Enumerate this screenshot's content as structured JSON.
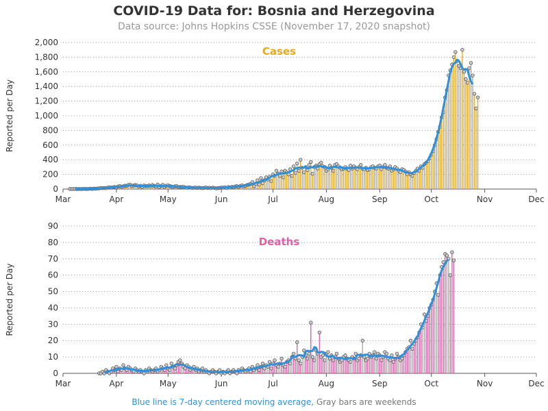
{
  "title": "COVID-19 Data for: Bosnia and Herzegovina",
  "subtitle": "Data source: Johns Hopkins CSSE (November 17, 2020 snapshot)",
  "footnote": {
    "blue_part": "Blue line is 7-day centered moving average,",
    "gray_part": "Gray bars are weekends"
  },
  "colors": {
    "cases": "#e8a820",
    "deaths": "#e060a8",
    "average": "#2e8fdb",
    "marker_fill": "#cccccc",
    "marker_stroke": "#555555"
  },
  "chart_data": [
    {
      "type": "bar",
      "panel_label": "Cases",
      "ylabel": "Reported per Day",
      "ylim": [
        0,
        2000
      ],
      "yticks": [
        0,
        200,
        400,
        600,
        800,
        1000,
        1200,
        1400,
        1600,
        1800,
        2000
      ],
      "ytick_labels": [
        "0",
        "200",
        "400",
        "600",
        "800",
        "1,000",
        "1,200",
        "1,400",
        "1,600",
        "1,800",
        "2,000"
      ],
      "x_start": "2020-03-01",
      "x_end": "2020-12-01",
      "xtick_labels": [
        "Mar",
        "Apr",
        "May",
        "Jun",
        "Jul",
        "Aug",
        "Sep",
        "Oct",
        "Nov",
        "Dec"
      ],
      "grid": "horizontal dotted",
      "dates_from": "2020-03-05",
      "values": [
        2,
        0,
        1,
        3,
        0,
        2,
        1,
        0,
        4,
        2,
        2,
        3,
        5,
        2,
        6,
        5,
        9,
        10,
        14,
        12,
        13,
        12,
        20,
        25,
        19,
        24,
        28,
        22,
        35,
        41,
        32,
        38,
        46,
        44,
        56,
        61,
        42,
        48,
        55,
        50,
        36,
        45,
        30,
        48,
        44,
        39,
        50,
        40,
        55,
        42,
        37,
        62,
        28,
        43,
        58,
        30,
        46,
        52,
        40,
        35,
        30,
        38,
        40,
        25,
        30,
        28,
        32,
        22,
        18,
        25,
        20,
        15,
        18,
        22,
        14,
        20,
        16,
        12,
        17,
        22,
        14,
        18,
        12,
        20,
        15,
        10,
        13,
        16,
        22,
        18,
        25,
        15,
        28,
        20,
        30,
        26,
        35,
        40,
        30,
        42,
        50,
        38,
        45,
        55,
        62,
        70,
        95,
        40,
        70,
        120,
        60,
        150,
        80,
        120,
        160,
        130,
        170,
        110,
        200,
        180,
        250,
        210,
        180,
        240,
        160,
        250,
        230,
        200,
        270,
        180,
        310,
        220,
        350,
        250,
        400,
        290,
        230,
        300,
        260,
        330,
        370,
        210,
        300,
        320,
        280,
        340,
        360,
        310,
        300,
        250,
        270,
        320,
        290,
        250,
        330,
        340,
        310,
        290,
        270,
        280,
        300,
        280,
        260,
        320,
        280,
        310,
        290,
        270,
        300,
        330,
        280,
        270,
        290,
        260,
        270,
        300,
        310,
        290,
        280,
        310,
        320,
        270,
        300,
        330,
        290,
        280,
        310,
        250,
        270,
        300,
        280,
        250,
        230,
        270,
        260,
        240,
        200,
        230,
        200,
        180,
        220,
        250,
        280,
        250,
        310,
        290,
        340,
        360,
        380,
        420,
        470,
        520,
        600,
        680,
        780,
        850,
        980,
        1050,
        1250,
        1350,
        1550,
        1620,
        1700,
        1800,
        1870,
        1750,
        1680,
        1650,
        1900,
        1600,
        1500,
        1450,
        1650,
        1720,
        1550,
        1300,
        1100,
        1250
      ]
    },
    {
      "type": "bar",
      "panel_label": "Deaths",
      "ylabel": "Reported per Day",
      "ylim": [
        0,
        90
      ],
      "yticks": [
        0,
        10,
        20,
        30,
        40,
        50,
        60,
        70,
        80,
        90
      ],
      "ytick_labels": [
        "0",
        "10",
        "20",
        "30",
        "40",
        "50",
        "60",
        "70",
        "80",
        "90"
      ],
      "x_start": "2020-03-01",
      "x_end": "2020-12-01",
      "xtick_labels": [
        "Mar",
        "Apr",
        "May",
        "Jun",
        "Jul",
        "Aug",
        "Sep",
        "Oct",
        "Nov",
        "Dec"
      ],
      "grid": "horizontal dotted",
      "dates_from": "2020-03-22",
      "values": [
        0,
        0,
        1,
        0,
        2,
        1,
        0,
        1,
        3,
        2,
        4,
        1,
        3,
        2,
        5,
        3,
        2,
        4,
        3,
        2,
        1,
        3,
        2,
        1,
        2,
        1,
        0,
        2,
        1,
        3,
        2,
        1,
        2,
        3,
        1,
        2,
        4,
        3,
        2,
        5,
        3,
        2,
        6,
        4,
        3,
        5,
        7,
        8,
        6,
        4,
        3,
        5,
        4,
        2,
        3,
        4,
        2,
        3,
        1,
        2,
        3,
        1,
        2,
        1,
        0,
        1,
        2,
        1,
        0,
        1,
        2,
        0,
        1,
        0,
        1,
        2,
        0,
        1,
        2,
        1,
        0,
        2,
        1,
        3,
        2,
        1,
        2,
        3,
        1,
        4,
        2,
        3,
        5,
        2,
        4,
        6,
        3,
        5,
        4,
        7,
        3,
        6,
        8,
        5,
        4,
        6,
        9,
        5,
        4,
        7,
        8,
        6,
        10,
        12,
        9,
        19,
        8,
        6,
        10,
        14,
        11,
        9,
        12,
        31,
        10,
        8,
        14,
        12,
        25,
        10,
        11,
        8,
        12,
        13,
        9,
        11,
        8,
        10,
        12,
        9,
        7,
        8,
        10,
        11,
        9,
        8,
        7,
        10,
        9,
        12,
        8,
        9,
        11,
        20,
        10,
        8,
        9,
        12,
        10,
        11,
        13,
        9,
        12,
        11,
        8,
        10,
        13,
        12,
        9,
        8,
        11,
        7,
        9,
        12,
        10,
        8,
        9,
        11,
        13,
        15,
        16,
        20,
        15,
        18,
        20,
        22,
        25,
        30,
        28,
        36,
        32,
        35,
        40,
        42,
        45,
        50,
        55,
        48,
        60,
        65,
        68,
        73,
        72,
        70,
        60,
        74,
        69
      ]
    }
  ]
}
